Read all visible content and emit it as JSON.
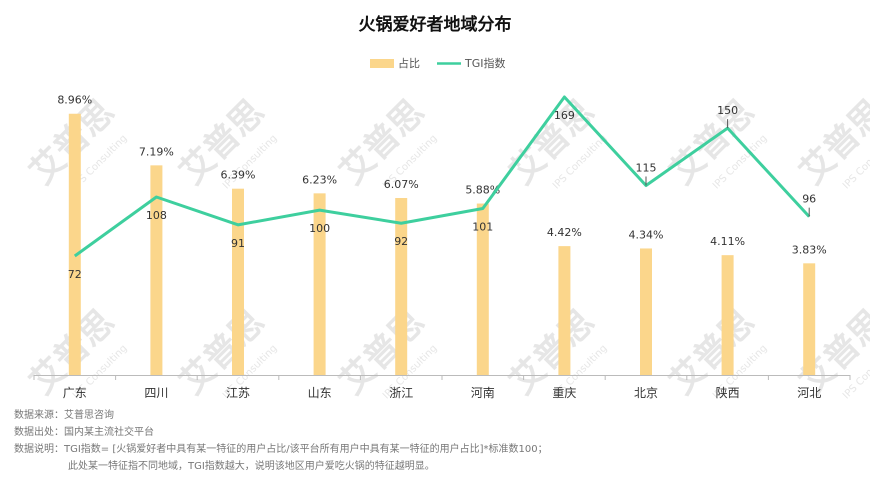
{
  "chart_data": {
    "type": "bar",
    "title": "火锅爱好者地域分布",
    "categories": [
      "广东",
      "四川",
      "江苏",
      "山东",
      "浙江",
      "河南",
      "重庆",
      "北京",
      "陕西",
      "河北"
    ],
    "series": [
      {
        "name": "占比",
        "type": "bar",
        "values": [
          8.96,
          7.19,
          6.39,
          6.23,
          6.07,
          5.88,
          4.42,
          4.34,
          4.11,
          3.83
        ],
        "labels": [
          "8.96%",
          "7.19%",
          "6.39%",
          "6.23%",
          "6.07%",
          "5.88%",
          "4.42%",
          "4.34%",
          "4.11%",
          "3.83%"
        ],
        "color": "#FBD68B"
      },
      {
        "name": "TGI指数",
        "type": "line",
        "values": [
          72,
          108,
          91,
          100,
          92,
          101,
          169,
          115,
          150,
          96
        ],
        "labels": [
          "72",
          "108",
          "91",
          "100",
          "92",
          "101",
          "169",
          "115",
          "150",
          "96"
        ],
        "color": "#3ECF9E"
      }
    ],
    "y_left_range": [
      0,
      9.5
    ],
    "y_right_range": [
      45,
      170
    ],
    "legend_position": "top-center",
    "grid": false
  },
  "watermark": {
    "brand": "艾普思",
    "sub": "IPS Consulting"
  },
  "notes": {
    "source": "数据来源：艾普思咨询",
    "origin": "数据出处：国内某主流社交平台",
    "explain_1": "数据说明：TGI指数= [火锅爱好者中具有某一特征的用户占比/该平台所有用户中具有某一特征的用户占比]*标准数100；",
    "explain_2": "此处某一特征指不同地域，TGI指数越大，说明该地区用户爱吃火锅的特征越明显。"
  }
}
